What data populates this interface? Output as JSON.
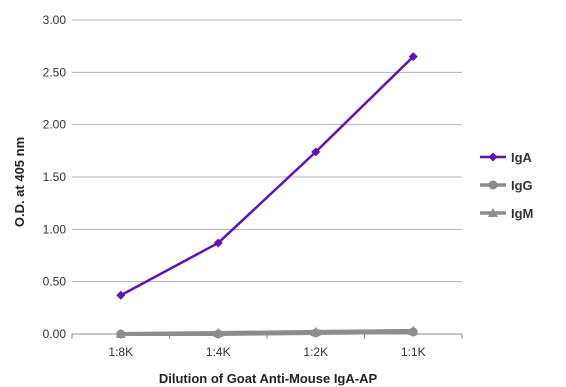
{
  "chart_data": {
    "type": "line",
    "title": "",
    "xlabel": "Dilution of Goat Anti-Mouse IgA-AP",
    "ylabel": "O.D. at 405 nm",
    "categories": [
      "1:8K",
      "1:4K",
      "1:2K",
      "1:1K"
    ],
    "ylim": [
      0,
      3
    ],
    "yticks": [
      "0.00",
      "0.50",
      "1.00",
      "1.50",
      "2.00",
      "2.50",
      "3.00"
    ],
    "ytick_values": [
      0,
      0.5,
      1,
      1.5,
      2,
      2.5,
      3
    ],
    "grid": true,
    "legend_position": "right",
    "series": [
      {
        "name": "IgA",
        "values": [
          0.37,
          0.87,
          1.74,
          2.65
        ],
        "color": "#5b14b8",
        "marker": "diamond"
      },
      {
        "name": "IgG",
        "values": [
          0.0,
          0.0,
          0.01,
          0.02
        ],
        "color": "#8c8c8c",
        "marker": "circle"
      },
      {
        "name": "IgM",
        "values": [
          0.0,
          0.01,
          0.02,
          0.03
        ],
        "color": "#8c8c8c",
        "marker": "triangle"
      }
    ]
  }
}
